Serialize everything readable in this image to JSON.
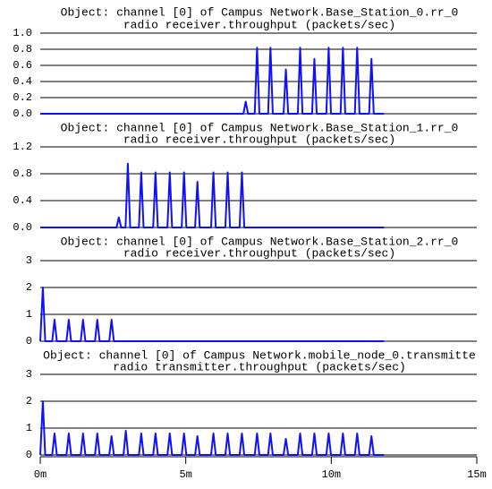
{
  "chart_data": [
    {
      "type": "line",
      "title": "Object: channel [0] of Campus Network.Base_Station_0.rr_0",
      "subtitle": "radio receiver.throughput (packets/sec)",
      "color": "#1010ff",
      "grid": true,
      "xlim": [
        0,
        15
      ],
      "ylim": [
        0,
        1
      ],
      "yticks": [
        {
          "value": 0,
          "label": "0.0"
        },
        0.2,
        0.4,
        0.6,
        0.8,
        {
          "value": 1,
          "label": "1.0"
        }
      ],
      "x": [
        0,
        6.98,
        7.06,
        7.14,
        7.37,
        7.45,
        7.53,
        7.83,
        7.91,
        7.99,
        8.36,
        8.44,
        8.52,
        8.85,
        8.93,
        9.01,
        9.34,
        9.42,
        9.5,
        9.83,
        9.91,
        9.99,
        10.32,
        10.4,
        10.48,
        10.81,
        10.89,
        10.97,
        11.3,
        11.38,
        11.46,
        11.81
      ],
      "values": [
        0,
        0,
        0.15,
        0,
        0,
        0.82,
        0,
        0,
        0.82,
        0,
        0,
        0.55,
        0,
        0,
        0.82,
        0,
        0,
        0.68,
        0,
        0,
        0.82,
        0,
        0,
        0.82,
        0,
        0,
        0.82,
        0,
        0,
        0.68,
        0,
        0
      ]
    },
    {
      "type": "line",
      "title": "Object: channel [0] of Campus Network.Base_Station_1.rr_0",
      "subtitle": "radio receiver.throughput (packets/sec)",
      "color": "#1010ff",
      "grid": true,
      "xlim": [
        0,
        15
      ],
      "ylim": [
        0,
        1.2
      ],
      "yticks": [
        {
          "value": 0,
          "label": "0.0"
        },
        0.4,
        0.8,
        1.2
      ],
      "x": [
        0,
        2.62,
        2.7,
        2.78,
        2.93,
        3.01,
        3.09,
        3.39,
        3.47,
        3.55,
        3.88,
        3.96,
        4.04,
        4.37,
        4.45,
        4.53,
        4.86,
        4.94,
        5.02,
        5.32,
        5.4,
        5.48,
        5.87,
        5.95,
        6.03,
        6.36,
        6.44,
        6.52,
        6.85,
        6.93,
        7.01,
        11.81
      ],
      "values": [
        0,
        0,
        0.15,
        0,
        0,
        0.95,
        0,
        0,
        0.82,
        0,
        0,
        0.82,
        0,
        0,
        0.82,
        0,
        0,
        0.82,
        0,
        0,
        0.68,
        0,
        0,
        0.82,
        0,
        0,
        0.82,
        0,
        0,
        0.82,
        0,
        0
      ]
    },
    {
      "type": "line",
      "title": "Object: channel [0] of Campus Network.Base_Station_2.rr_0",
      "subtitle": "radio receiver.throughput (packets/sec)",
      "color": "#1010ff",
      "grid": true,
      "xlim": [
        0,
        15
      ],
      "ylim": [
        0,
        3
      ],
      "yticks": [
        0,
        1,
        2,
        3
      ],
      "x": [
        0,
        0.09,
        0.17,
        0.41,
        0.49,
        0.57,
        0.9,
        0.98,
        1.06,
        1.39,
        1.47,
        1.55,
        1.88,
        1.96,
        2.04,
        2.37,
        2.45,
        2.53,
        11.81
      ],
      "values": [
        0,
        2,
        0,
        0,
        0.8,
        0,
        0,
        0.8,
        0,
        0,
        0.8,
        0,
        0,
        0.8,
        0,
        0,
        0.8,
        0,
        0
      ]
    },
    {
      "type": "line",
      "title": "Object: channel [0] of Campus Network.mobile_node_0.transmitte",
      "subtitle": "radio transmitter.throughput (packets/sec)",
      "color": "#1010ff",
      "grid": true,
      "xlim": [
        0,
        15
      ],
      "ylim": [
        0,
        3
      ],
      "yticks": [
        0,
        1,
        2,
        3
      ],
      "xticks": [
        {
          "value": 0,
          "label": "0m"
        },
        {
          "value": 5,
          "label": "5m"
        },
        {
          "value": 10,
          "label": "10m"
        },
        {
          "value": 15,
          "label": "15m"
        }
      ],
      "x": [
        0,
        0.09,
        0.17,
        0.41,
        0.49,
        0.57,
        0.9,
        0.98,
        1.06,
        1.39,
        1.47,
        1.55,
        1.88,
        1.96,
        2.04,
        2.37,
        2.45,
        2.53,
        2.86,
        2.94,
        3.02,
        3.39,
        3.47,
        3.55,
        3.88,
        3.96,
        4.04,
        4.37,
        4.45,
        4.53,
        4.86,
        4.94,
        5.02,
        5.32,
        5.4,
        5.48,
        5.87,
        5.95,
        6.03,
        6.36,
        6.44,
        6.52,
        6.85,
        6.93,
        7.01,
        7.37,
        7.45,
        7.53,
        7.83,
        7.91,
        7.99,
        8.36,
        8.44,
        8.52,
        8.85,
        8.93,
        9.01,
        9.34,
        9.42,
        9.5,
        9.83,
        9.91,
        9.99,
        10.32,
        10.4,
        10.48,
        10.81,
        10.89,
        10.97,
        11.3,
        11.38,
        11.46,
        11.81
      ],
      "values": [
        0,
        2,
        0,
        0,
        0.8,
        0,
        0,
        0.8,
        0,
        0,
        0.8,
        0,
        0,
        0.8,
        0,
        0,
        0.7,
        0,
        0,
        0.9,
        0,
        0,
        0.8,
        0,
        0,
        0.8,
        0,
        0,
        0.8,
        0,
        0,
        0.8,
        0,
        0,
        0.7,
        0,
        0,
        0.8,
        0,
        0,
        0.8,
        0,
        0,
        0.8,
        0,
        0,
        0.8,
        0,
        0,
        0.8,
        0,
        0,
        0.6,
        0,
        0,
        0.8,
        0,
        0,
        0.8,
        0,
        0,
        0.8,
        0,
        0,
        0.8,
        0,
        0,
        0.8,
        0,
        0,
        0.7,
        0,
        0
      ]
    }
  ]
}
